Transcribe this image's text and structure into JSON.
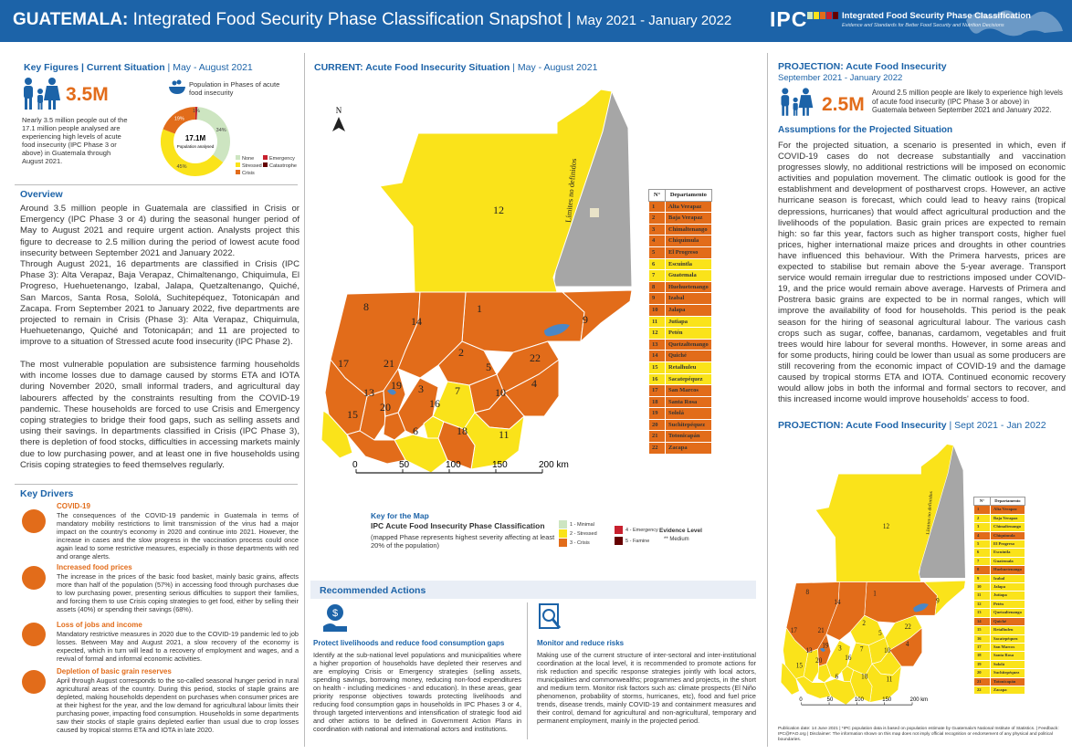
{
  "header": {
    "country": "GUATEMALA:",
    "title": " Integrated Food Security Phase Classification Snapshot",
    "separator": " | ",
    "period": "May 2021 - January 2022",
    "logo": "IPC",
    "logo_name": "Integrated Food Security Phase Classification",
    "logo_sub": "Evidence and Standards for Better Food Security and Nutrition Decisions"
  },
  "colors": {
    "phase1": "#cde5c1",
    "phase2": "#fae31a",
    "phase3": "#e26c1a",
    "phase4": "#c8202e",
    "phase5": "#650000",
    "no_data": "#a6a6a6",
    "brand": "#1c63a8"
  },
  "key_figures": {
    "heading": "Key Figures",
    "heading_sep": " | Current Situation",
    "heading_period": " | May - August 2021",
    "big_number": "3.5M",
    "text": "Nearly 3.5 million people out of the 17.1 million people analysed are experiencing high levels of acute food insecurity (IPC Phase 3 or above) in Guatemala through August 2021.",
    "donut_title": "Population in Phases of acute food insecurity",
    "donut_center_value": "17.1M",
    "donut_center_label": "Population analysed",
    "donut_slices": [
      {
        "label": "34%",
        "value": 34,
        "phase": "None"
      },
      {
        "label": "45%",
        "value": 45,
        "phase": "Stressed"
      },
      {
        "label": "19%",
        "value": 19,
        "phase": "Crisis"
      },
      {
        "label": "1%",
        "value": 1,
        "phase": "Emergency"
      }
    ],
    "donut_legend": [
      "None",
      "Stressed",
      "Crisis",
      "Emergency",
      "Catastrophe"
    ]
  },
  "overview": {
    "heading": "Overview",
    "p1": "Around 3.5 million people in Guatemala are classified in Crisis or Emergency (IPC Phase 3 or 4) during the seasonal hunger period of May to August 2021 and require urgent action. Analysts project this figure to decrease to 2.5 million during the period of lowest acute food insecurity between September 2021 and January 2022.",
    "p2": "Through August 2021, 16 departments are classified in Crisis (IPC Phase 3): Alta Verapaz, Baja Verapaz, Chimaltenango, Chiquimula, El Progreso, Huehuetenango, Izabal, Jalapa, Quetzaltenango, Quiché, San Marcos, Santa Rosa, Sololá, Suchitepéquez, Totonicapán and Zacapa. From September 2021 to January 2022, five departments are projected to remain in Crisis (Phase 3): Alta Verapaz, Chiquimula, Huehuetenango, Quiché and Totonicapán; and 11 are projected to improve to a situation of Stressed acute food insecurity (IPC Phase 2).",
    "p3": "The most vulnerable population are subsistence farming households with income losses due to damage caused by storms ETA and IOTA during November 2020, small informal traders, and agricultural day labourers affected by the constraints resulting from the COVID-19 pandemic. These households are forced to use Crisis and Emergency coping strategies to bridge their food gaps, such as selling assets and using their savings. In departments classified in Crisis (IPC Phase 3), there is depletion of food stocks, difficulties in accessing markets mainly due to low purchasing power, and at least one in five households using Crisis coping strategies to feed themselves regularly."
  },
  "drivers": {
    "heading": "Key Drivers",
    "items": [
      {
        "title": "COVID-19",
        "icon": "virus-icon",
        "text": "The consequences of the COVID-19 pandemic in Guatemala in terms of mandatory mobility restrictions to limit transmission of the virus had a major impact on the country's economy in 2020 and continue into 2021. However, the increase in cases and the slow progress in the vaccination process could once again lead to some restrictive measures, especially in those departments with red and orange alerts."
      },
      {
        "title": "Increased food prices",
        "icon": "price-icon",
        "text": "The increase in the prices of the basic food basket, mainly basic grains, affects more than half of the population (57%) in accessing food through purchases due to low purchasing power, presenting serious difficulties to support their families, and forcing them to use Crisis coping strategies to get food, either by selling their assets (40%) or spending their savings (68%)."
      },
      {
        "title": "Loss of jobs and income",
        "icon": "jobs-icon",
        "text": "Mandatory restrictive measures in 2020 due to the COVID-19 pandemic led to job losses. Between May and August 2021, a slow recovery of the economy is expected, which in turn will lead to a recovery of employment and wages, and a revival of formal and informal economic activities."
      },
      {
        "title": "Depletion of basic grain reserves",
        "icon": "grain-icon",
        "text": "April through August corresponds to the so-called seasonal hunger period in rural agricultural areas of the country. During this period, stocks of staple grains are depleted, making households dependent on purchases when consumer prices are at their highest for the year, and the low demand for agricultural labour limits their purchasing power, impacting food consumption. Households in some departments saw their stocks of staple grains depleted earlier than usual due to crop losses caused by tropical storms ETA and IOTA in late 2020."
      }
    ]
  },
  "current_map": {
    "heading": "CURRENT: Acute Food Insecurity Situation",
    "heading_period": " | May - August 2021",
    "north": "N",
    "limits_label": "Límites no definidos",
    "scale_labels": [
      "0",
      "50",
      "100",
      "150",
      "200 km"
    ],
    "table_header_no": "N°",
    "table_header_dep": "Departamento",
    "departments": [
      {
        "n": "1",
        "name": "Alta Verapaz",
        "phase": 3
      },
      {
        "n": "2",
        "name": "Baja Verapaz",
        "phase": 3
      },
      {
        "n": "3",
        "name": "Chimaltenango",
        "phase": 3
      },
      {
        "n": "4",
        "name": "Chiquimula",
        "phase": 3
      },
      {
        "n": "5",
        "name": "El Progreso",
        "phase": 3
      },
      {
        "n": "6",
        "name": "Escuintla",
        "phase": 2
      },
      {
        "n": "7",
        "name": "Guatemala",
        "phase": 2
      },
      {
        "n": "8",
        "name": "Huehuetenango",
        "phase": 3
      },
      {
        "n": "9",
        "name": "Izabal",
        "phase": 3
      },
      {
        "n": "10",
        "name": "Jalapa",
        "phase": 3
      },
      {
        "n": "11",
        "name": "Jutiapa",
        "phase": 2
      },
      {
        "n": "12",
        "name": "Petén",
        "phase": 2
      },
      {
        "n": "13",
        "name": "Quetzaltenango",
        "phase": 3
      },
      {
        "n": "14",
        "name": "Quiché",
        "phase": 3
      },
      {
        "n": "15",
        "name": "Retalhuleu",
        "phase": 2
      },
      {
        "n": "16",
        "name": "Sacatepéquez",
        "phase": 2
      },
      {
        "n": "17",
        "name": "San Marcos",
        "phase": 3
      },
      {
        "n": "18",
        "name": "Santa Rosa",
        "phase": 3
      },
      {
        "n": "19",
        "name": "Sololá",
        "phase": 3
      },
      {
        "n": "20",
        "name": "Suchitepéquez",
        "phase": 3
      },
      {
        "n": "21",
        "name": "Totonicapán",
        "phase": 3
      },
      {
        "n": "22",
        "name": "Zacapa",
        "phase": 3
      }
    ]
  },
  "map_key": {
    "heading": "Key for the Map",
    "title": "IPC Acute Food Insecurity Phase Classification",
    "note": "(mapped Phase represents highest severity affecting at least 20% of the population)",
    "phases": [
      "1 - Minimal",
      "2 - Stressed",
      "3 - Crisis",
      "4 - Emergency",
      "5 - Famine"
    ],
    "evidence_label": "Evidence Level",
    "evidence_value": "Medium",
    "evidence_symbol": "**"
  },
  "actions": {
    "heading": "Recommended Actions",
    "a1_title": "Protect livelihoods and reduce food consumption gaps",
    "a1_text": "Identify at the sub-national level populations and municipalities where a higher proportion of households have depleted their reserves and are employing Crisis or Emergency strategies (selling assets, spending savings, borrowing money, reducing non-food expenditures on health - including medicines - and education). In these areas, gear priority response objectives towards protecting livelihoods and reducing food consumption gaps in households in IPC Phases 3 or 4, through targeted interventions and intensification of strategic food aid and other actions to be defined in Government Action Plans in coordination with national and international actors and institutions.",
    "a2_title": "Monitor and reduce risks",
    "a2_text": "Making use of the current structure of inter-sectoral and inter-institutional coordination at the local level, it is recommended to promote actions for risk reduction and specific response strategies jointly with local actors, municipalities and commonwealths; programmes and projects, in the short and medium term. Monitor risk factors such as: climate prospects (El Niño phenomenon, probability of storms, hurricanes, etc), food and fuel price trends, disease trends, mainly COVID-19 and containment measures and their control, demand for agricultural and non-agricultural, temporary and permanent employment, mainly in the projected period."
  },
  "projection": {
    "heading": "PROJECTION:  Acute Food Insecurity",
    "period": "September 2021 - January 2022",
    "big_number": "2.5M",
    "big_text": "Around 2.5 million people are likely to experience high levels of acute food insecurity (IPC Phase 3 or above) in Guatemala between September 2021 and January 2022.",
    "assumptions_heading": "Assumptions for the Projected Situation",
    "assumptions_text": "For the projected situation, a scenario is presented in which, even if COVID-19 cases do not decrease substantially and vaccination progresses slowly, no additional restrictions will be imposed on economic activities and population movement. The climatic outlook is good for the establishment and development of postharvest crops. However, an active hurricane season is forecast, which could lead to heavy rains (tropical depressions, hurricanes) that would affect agricultural production and the livelihoods of the population. Basic grain prices are expected to remain high: so far this year, factors such as higher transport costs, higher fuel prices, higher international maize prices and droughts in other countries have influenced this behaviour. With the Primera harvests, prices are expected to stabilise but remain above the 5-year average. Transport service would remain irregular due to restrictions imposed under COVID-19, and the price would remain above average. Harvests of Primera and Postrera basic grains are expected to be in normal ranges, which will improve the availability of food for households. This period is the peak season for the hiring of seasonal agricultural labour. The various cash crops such as sugar, coffee, bananas, cardamom, vegetables and fruit trees would hire labour for several months. However, in some areas and for some products, hiring could be lower than usual as some producers are still recovering from the economic impact of COVID-19 and the damage caused by tropical storms ETA and IOTA. Continued economic recovery would allow jobs in both the informal and formal sectors to recover, and this increased income would improve households' access to food.",
    "map_heading": "PROJECTION: Acute Food Insecurity",
    "map_period": " | Sept 2021 - Jan 2022",
    "scale_labels": [
      "0",
      "50",
      "100",
      "150",
      "200 km"
    ],
    "limits_label": "Límites no definidos",
    "phases": [
      3,
      2,
      2,
      3,
      2,
      2,
      2,
      3,
      2,
      2,
      2,
      2,
      2,
      3,
      2,
      2,
      2,
      2,
      2,
      2,
      3,
      2
    ]
  },
  "footer": {
    "text": "Publication date: 14 June 2021 | *IPC population data is based on population estimate by Guatemala's National Institute of Statistics. | Feedback: IPC@FAO.org | Disclaimer: The information shown on this map does not imply official recognition or endorsement of any physical and political boundaries."
  }
}
